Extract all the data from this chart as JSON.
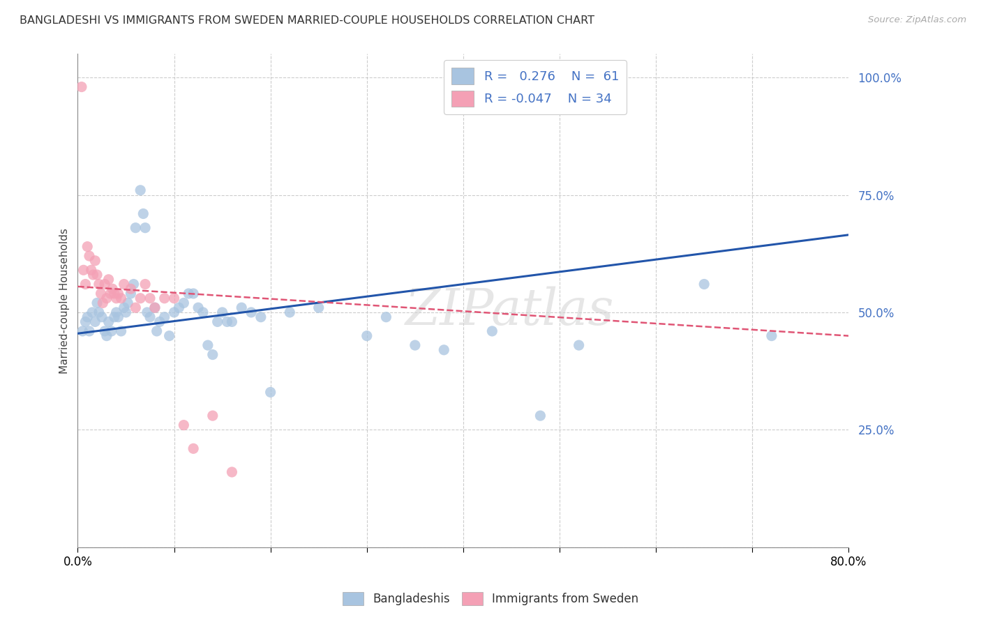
{
  "title": "BANGLADESHI VS IMMIGRANTS FROM SWEDEN MARRIED-COUPLE HOUSEHOLDS CORRELATION CHART",
  "source": "Source: ZipAtlas.com",
  "ylabel": "Married-couple Households",
  "watermark": "ZIPatlas",
  "legend_blue_label": "Bangladeshis",
  "legend_pink_label": "Immigrants from Sweden",
  "R_blue": 0.276,
  "N_blue": 61,
  "R_pink": -0.047,
  "N_pink": 34,
  "blue_color": "#a8c4e0",
  "blue_line_color": "#2255aa",
  "pink_color": "#f4a0b5",
  "pink_line_color": "#e05575",
  "blue_scatter_x": [
    0.005,
    0.008,
    0.01,
    0.012,
    0.015,
    0.018,
    0.02,
    0.022,
    0.025,
    0.028,
    0.03,
    0.032,
    0.035,
    0.038,
    0.04,
    0.042,
    0.045,
    0.048,
    0.05,
    0.052,
    0.055,
    0.058,
    0.06,
    0.065,
    0.068,
    0.07,
    0.072,
    0.075,
    0.08,
    0.082,
    0.085,
    0.09,
    0.095,
    0.1,
    0.105,
    0.11,
    0.115,
    0.12,
    0.125,
    0.13,
    0.135,
    0.14,
    0.145,
    0.15,
    0.155,
    0.16,
    0.17,
    0.18,
    0.19,
    0.2,
    0.22,
    0.25,
    0.3,
    0.32,
    0.35,
    0.38,
    0.43,
    0.48,
    0.52,
    0.65,
    0.72
  ],
  "blue_scatter_y": [
    0.46,
    0.48,
    0.49,
    0.46,
    0.5,
    0.48,
    0.52,
    0.5,
    0.49,
    0.46,
    0.45,
    0.48,
    0.46,
    0.49,
    0.5,
    0.49,
    0.46,
    0.51,
    0.5,
    0.52,
    0.54,
    0.56,
    0.68,
    0.76,
    0.71,
    0.68,
    0.5,
    0.49,
    0.51,
    0.46,
    0.48,
    0.49,
    0.45,
    0.5,
    0.51,
    0.52,
    0.54,
    0.54,
    0.51,
    0.5,
    0.43,
    0.41,
    0.48,
    0.5,
    0.48,
    0.48,
    0.51,
    0.5,
    0.49,
    0.33,
    0.5,
    0.51,
    0.45,
    0.49,
    0.43,
    0.42,
    0.46,
    0.28,
    0.43,
    0.56,
    0.45
  ],
  "pink_scatter_x": [
    0.004,
    0.006,
    0.008,
    0.01,
    0.012,
    0.014,
    0.016,
    0.018,
    0.02,
    0.022,
    0.024,
    0.026,
    0.028,
    0.03,
    0.032,
    0.034,
    0.036,
    0.038,
    0.04,
    0.042,
    0.045,
    0.048,
    0.055,
    0.06,
    0.065,
    0.07,
    0.075,
    0.08,
    0.09,
    0.1,
    0.11,
    0.12,
    0.14,
    0.16
  ],
  "pink_scatter_y": [
    0.98,
    0.59,
    0.56,
    0.64,
    0.62,
    0.59,
    0.58,
    0.61,
    0.58,
    0.56,
    0.54,
    0.52,
    0.56,
    0.53,
    0.57,
    0.54,
    0.55,
    0.54,
    0.53,
    0.54,
    0.53,
    0.56,
    0.55,
    0.51,
    0.53,
    0.56,
    0.53,
    0.51,
    0.53,
    0.53,
    0.26,
    0.21,
    0.28,
    0.16
  ],
  "xlim": [
    0.0,
    0.8
  ],
  "ylim": [
    0.0,
    1.05
  ],
  "ytick_vals": [
    0.0,
    0.25,
    0.5,
    0.75,
    1.0
  ],
  "xtick_vals": [
    0.0,
    0.1,
    0.2,
    0.3,
    0.4,
    0.5,
    0.6,
    0.7,
    0.8
  ],
  "background_color": "#ffffff",
  "blue_line_x": [
    0.0,
    0.8
  ],
  "blue_line_y": [
    0.455,
    0.665
  ],
  "pink_line_x": [
    0.0,
    0.8
  ],
  "pink_line_y": [
    0.555,
    0.45
  ]
}
